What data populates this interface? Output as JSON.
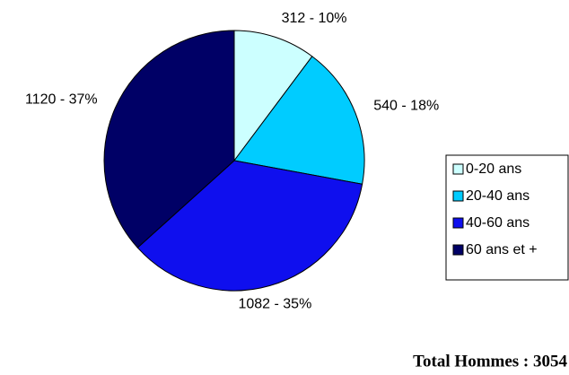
{
  "chart_data": {
    "type": "pie",
    "categories": [
      "0-20 ans",
      "20-40 ans",
      "40-60 ans",
      "60 ans et +"
    ],
    "values": [
      312,
      540,
      1082,
      1120
    ],
    "value_labels": [
      "312 - 10%",
      "540 - 18%",
      "1082 - 35%",
      "1120 - 37%"
    ],
    "colors": [
      "#ccffff",
      "#00ccff",
      "#0f0fee",
      "#000066"
    ],
    "legend": "right",
    "annotation": "Total Hommes : 3054"
  }
}
